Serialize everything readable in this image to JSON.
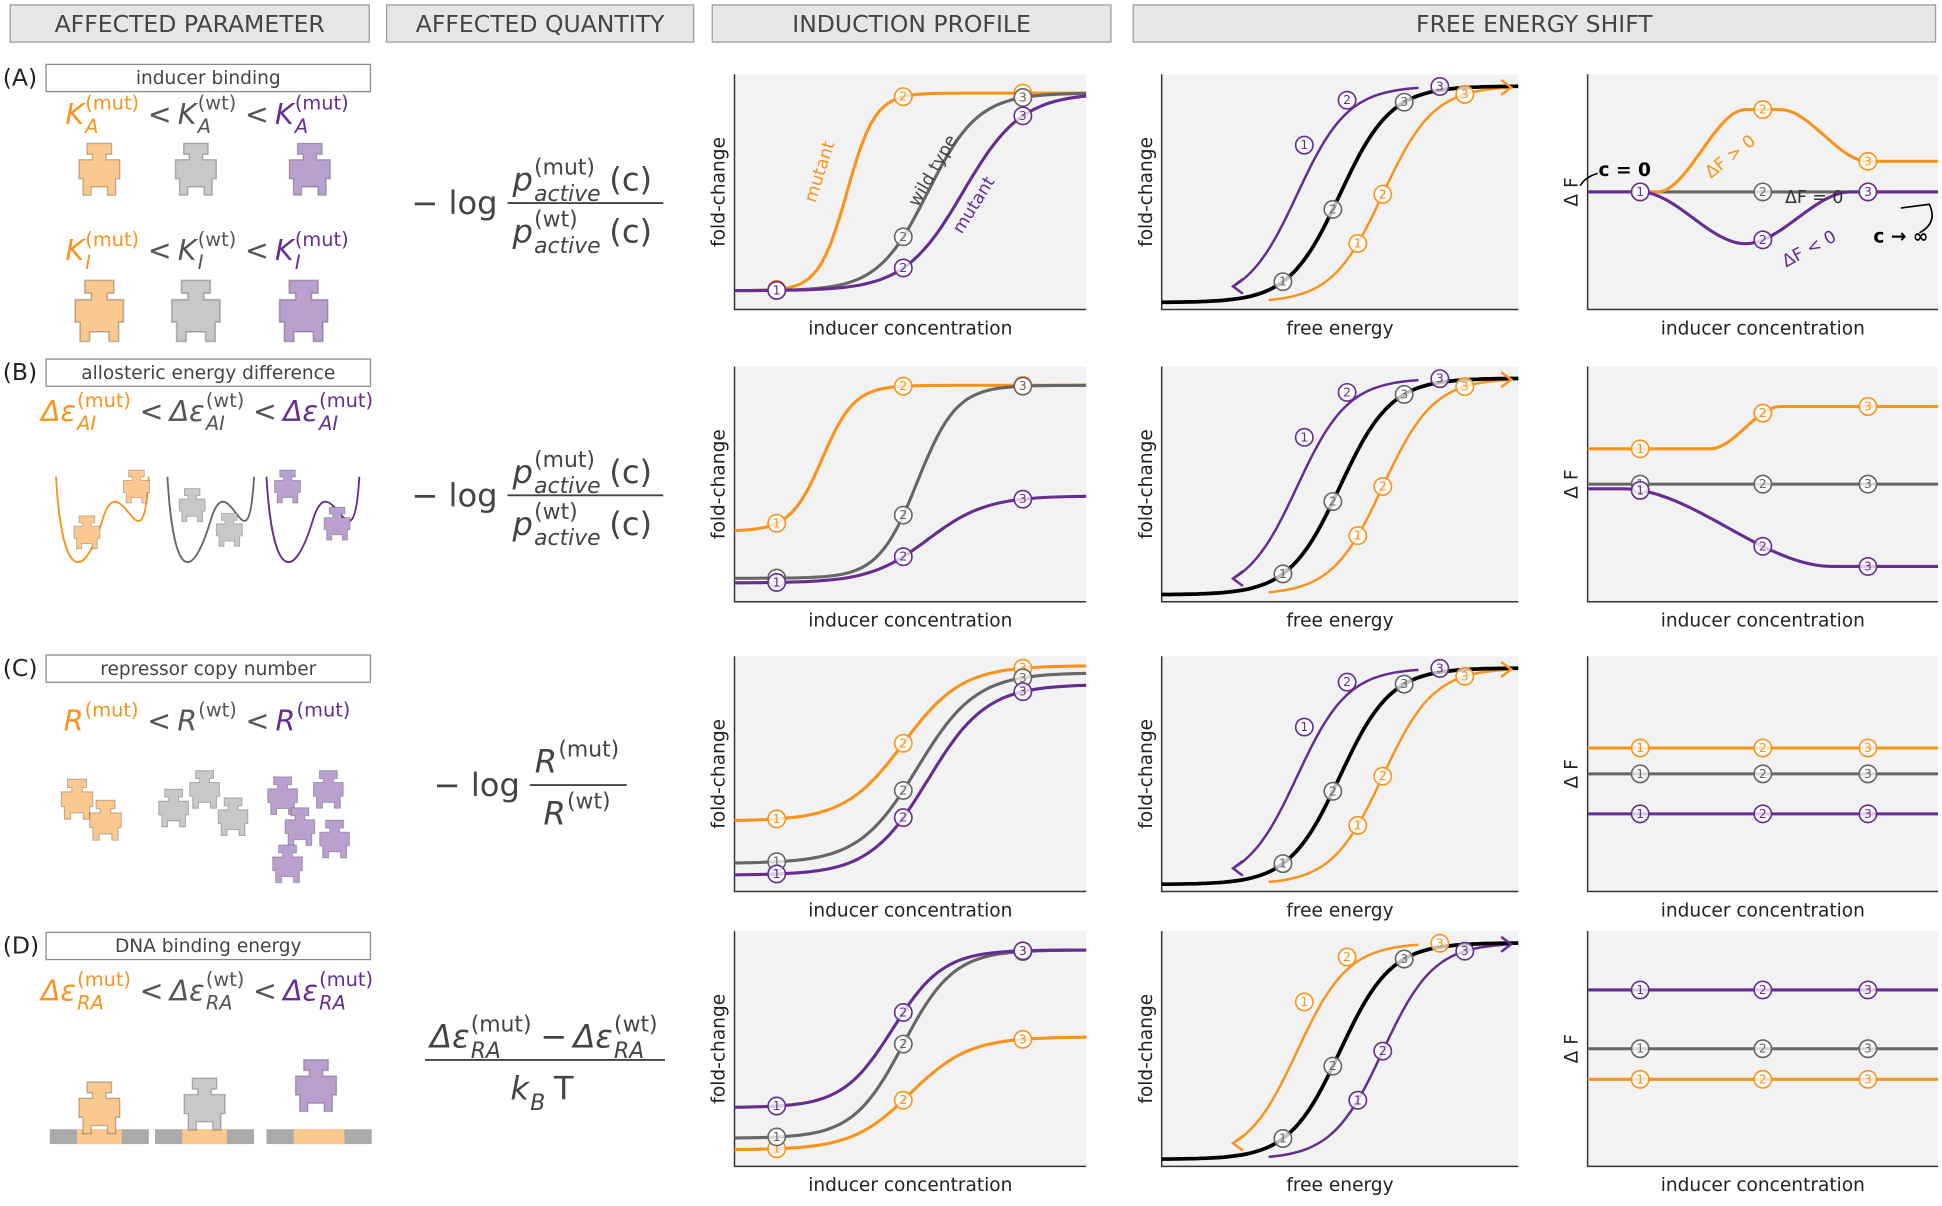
{
  "headers": [
    "AFFECTED PARAMETER",
    "AFFECTED QUANTITY",
    "INDUCTION PROFILE",
    "FREE ENERGY SHIFT"
  ],
  "markers": [
    "1",
    "2",
    "3"
  ],
  "axis_labels": {
    "fold_change": "fold-change",
    "inducer": "inducer concentration",
    "free_energy": "free energy",
    "delta_f": "Δ F"
  },
  "annotations": {
    "mutant": "mutant",
    "wild_type": "wild type",
    "c0": "c = 0",
    "cinf": "c → ∞",
    "df_pos": "ΔF > 0",
    "df_zero": "ΔF = 0",
    "df_neg": "ΔF < 0"
  },
  "rows": [
    {
      "letter": "(A)",
      "parameter": "inducer binding",
      "inequalities": [
        [
          {
            "base": "K",
            "sub": "A",
            "sup": "(mut)"
          },
          "<",
          {
            "base": "K",
            "sub": "A",
            "sup": "(wt)"
          },
          "<",
          {
            "base": "K",
            "sub": "A",
            "sup": "(mut)"
          }
        ],
        [
          {
            "base": "K",
            "sub": "I",
            "sup": "(mut)"
          },
          "<",
          {
            "base": "K",
            "sub": "I",
            "sup": "(wt)"
          },
          "<",
          {
            "base": "K",
            "sub": "I",
            "sup": "(mut)"
          }
        ]
      ],
      "quantity": {
        "prefix": "− log",
        "num": [
          {
            "base": "p",
            "sub": "active",
            "sup": "(mut)"
          },
          "(c)"
        ],
        "den": [
          {
            "base": "p",
            "sub": "active",
            "sup": "(wt)"
          },
          "(c)"
        ]
      }
    },
    {
      "letter": "(B)",
      "parameter": "allosteric energy difference",
      "inequalities": [
        [
          {
            "base": "Δε",
            "sub": "AI",
            "sup": "(mut)"
          },
          "<",
          {
            "base": "Δε",
            "sub": "AI",
            "sup": "(wt)"
          },
          "<",
          {
            "base": "Δε",
            "sub": "AI",
            "sup": "(mut)"
          }
        ]
      ],
      "quantity": {
        "prefix": "− log",
        "num": [
          {
            "base": "p",
            "sub": "active",
            "sup": "(mut)"
          },
          "(c)"
        ],
        "den": [
          {
            "base": "p",
            "sub": "active",
            "sup": "(wt)"
          },
          "(c)"
        ]
      }
    },
    {
      "letter": "(C)",
      "parameter": "repressor copy number",
      "inequalities": [
        [
          {
            "base": "R",
            "sup": "(mut)"
          },
          "<",
          {
            "base": "R",
            "sup": "(wt)"
          },
          "<",
          {
            "base": "R",
            "sup": "(mut)"
          }
        ]
      ],
      "quantity": {
        "prefix": "− log",
        "num": [
          {
            "base": "R",
            "sup": "(mut)"
          }
        ],
        "den": [
          {
            "base": "R",
            "sup": "(wt)"
          }
        ]
      }
    },
    {
      "letter": "(D)",
      "parameter": "DNA binding energy",
      "inequalities": [
        [
          {
            "base": "Δε",
            "sub": "RA",
            "sup": "(mut)"
          },
          "<",
          {
            "base": "Δε",
            "sub": "RA",
            "sup": "(wt)"
          },
          "<",
          {
            "base": "Δε",
            "sub": "RA",
            "sup": "(mut)"
          }
        ]
      ],
      "quantity": {
        "num": [
          {
            "base": "Δε",
            "sub": "RA",
            "sup": "(mut)"
          },
          "−",
          {
            "base": "Δε",
            "sub": "RA",
            "sup": "(wt)"
          }
        ],
        "den": [
          {
            "base": "k",
            "sub": "B"
          },
          "T"
        ]
      }
    }
  ]
}
